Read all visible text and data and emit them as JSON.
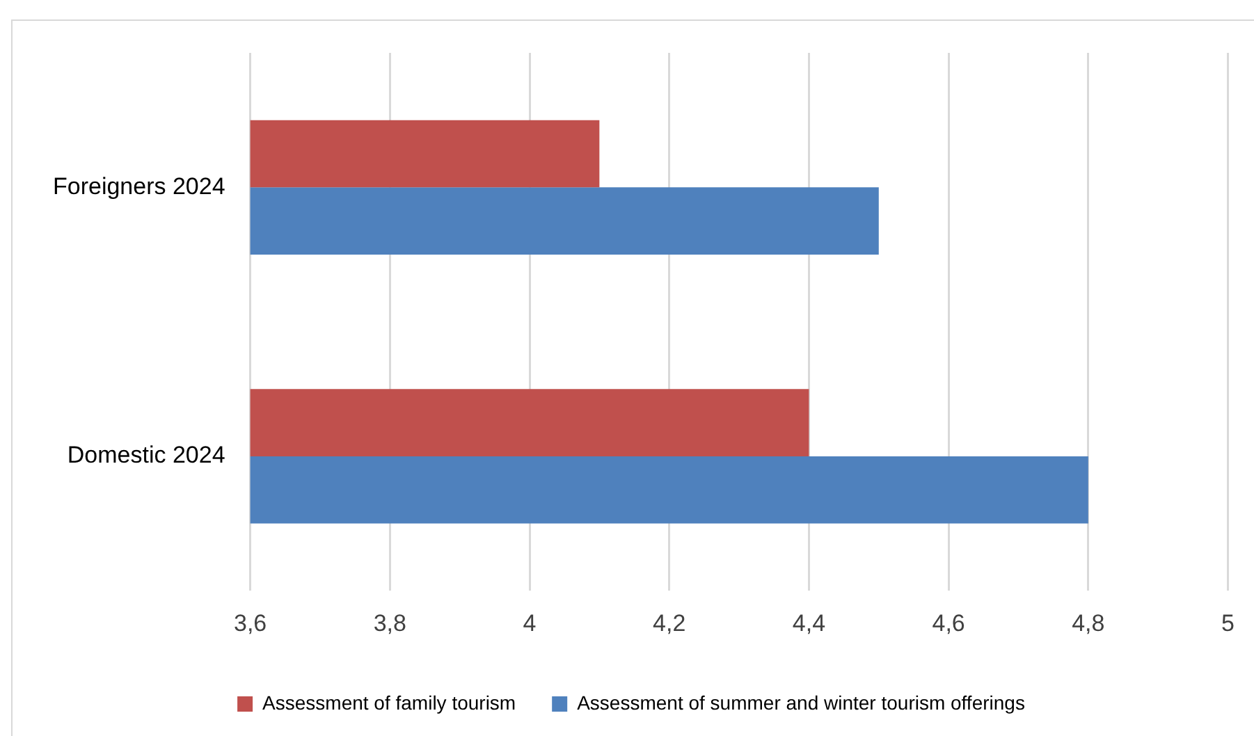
{
  "chart_data": {
    "type": "bar",
    "orientation": "horizontal",
    "categories": [
      "Foreigners 2024",
      "Domestic 2024"
    ],
    "series": [
      {
        "name": "Assessment of family tourism",
        "color": "#c0504d",
        "values": [
          4.1,
          4.4
        ]
      },
      {
        "name": "Assessment of summer and winter tourism offerings",
        "color": "#4f81bd",
        "values": [
          4.5,
          4.8
        ]
      }
    ],
    "xlim": [
      3.6,
      5
    ],
    "xticks": [
      {
        "value": 3.6,
        "label": "3,6"
      },
      {
        "value": 3.8,
        "label": "3,8"
      },
      4,
      {
        "value": 4.2,
        "label": "4,2"
      },
      {
        "value": 4.4,
        "label": "4,4"
      },
      {
        "value": 4.6,
        "label": "4,6"
      },
      {
        "value": 4.8,
        "label": "4,8"
      },
      5
    ],
    "grid": "x",
    "legend": "bottom"
  }
}
